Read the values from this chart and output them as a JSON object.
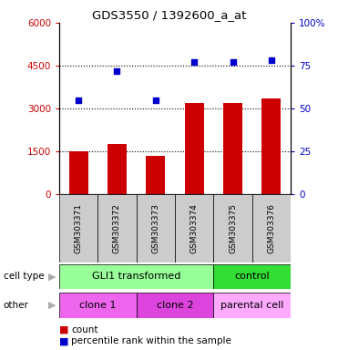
{
  "title": "GDS3550 / 1392600_a_at",
  "samples": [
    "GSM303371",
    "GSM303372",
    "GSM303373",
    "GSM303374",
    "GSM303375",
    "GSM303376"
  ],
  "counts": [
    1500,
    1750,
    1350,
    3200,
    3200,
    3350
  ],
  "percentiles": [
    55,
    72,
    55,
    77,
    77,
    78
  ],
  "ylim_left": [
    0,
    6000
  ],
  "ylim_right": [
    0,
    100
  ],
  "yticks_left": [
    0,
    1500,
    3000,
    4500,
    6000
  ],
  "yticks_right": [
    0,
    25,
    50,
    75,
    100
  ],
  "ytick_labels_left": [
    "0",
    "1500",
    "3000",
    "4500",
    "6000"
  ],
  "ytick_labels_right": [
    "0",
    "25",
    "50",
    "75",
    "100%"
  ],
  "bar_color": "#cc0000",
  "dot_color": "#0000cc",
  "cell_type_groups": [
    {
      "label": "GLI1 transformed",
      "start": 0,
      "end": 4,
      "color": "#99ff99"
    },
    {
      "label": "control",
      "start": 4,
      "end": 6,
      "color": "#33dd33"
    }
  ],
  "other_groups": [
    {
      "label": "clone 1",
      "start": 0,
      "end": 2,
      "color": "#ee66ee"
    },
    {
      "label": "clone 2",
      "start": 2,
      "end": 4,
      "color": "#dd44dd"
    },
    {
      "label": "parental cell",
      "start": 4,
      "end": 6,
      "color": "#ffaaff"
    }
  ],
  "legend_count_label": "count",
  "legend_percentile_label": "percentile rank within the sample",
  "cell_type_label": "cell type",
  "other_label": "other",
  "bg_color": "#ffffff",
  "sample_bg_color": "#cccccc"
}
